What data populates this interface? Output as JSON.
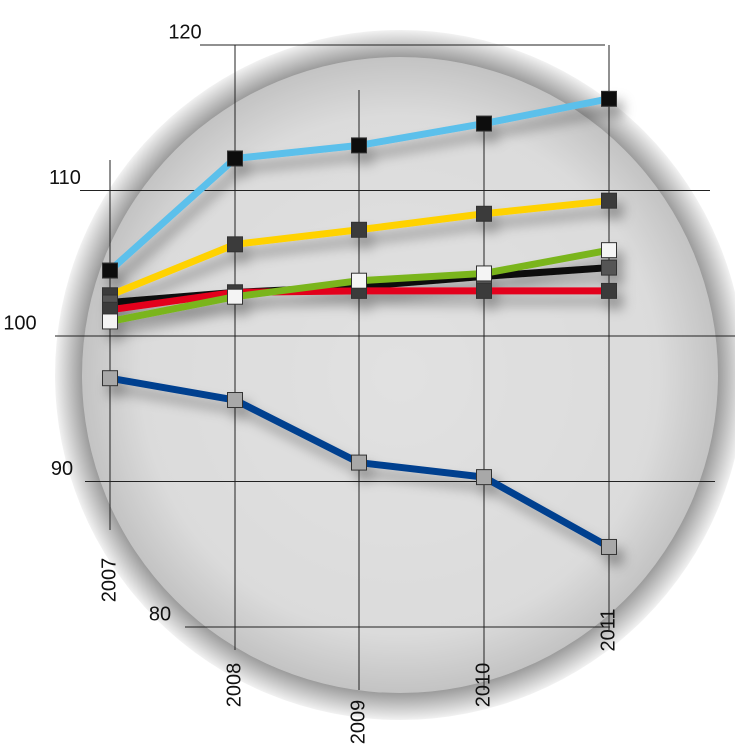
{
  "chart_data": {
    "type": "line",
    "categories": [
      "2007",
      "2008",
      "2009",
      "2010",
      "2011"
    ],
    "series": [
      {
        "color": "#5bc0eb",
        "marker_color": "#111111",
        "values": [
          104.5,
          112.2,
          113.1,
          114.6,
          116.3
        ]
      },
      {
        "color": "#ffd200",
        "marker_color": "#3a3a3a",
        "values": [
          102.8,
          106.3,
          107.3,
          108.4,
          109.3
        ]
      },
      {
        "color": "#111111",
        "marker_color": "#555555",
        "values": [
          102.3,
          103.0,
          103.4,
          104.1,
          104.7
        ]
      },
      {
        "color": "#e3001b",
        "marker_color": "#3a3a3a",
        "values": [
          101.8,
          103.0,
          103.1,
          103.1,
          103.1
        ]
      },
      {
        "color": "#7ab51d",
        "marker_color": "#f4f4f4",
        "values": [
          101.0,
          102.7,
          103.8,
          104.3,
          105.9
        ]
      },
      {
        "color": "#003f8f",
        "marker_color": "#a8a8a8",
        "values": [
          97.1,
          95.6,
          91.3,
          90.3,
          85.5
        ]
      }
    ],
    "ylim": [
      80,
      120
    ],
    "yticks": [
      80,
      90,
      100,
      110,
      120
    ],
    "grid": true
  }
}
